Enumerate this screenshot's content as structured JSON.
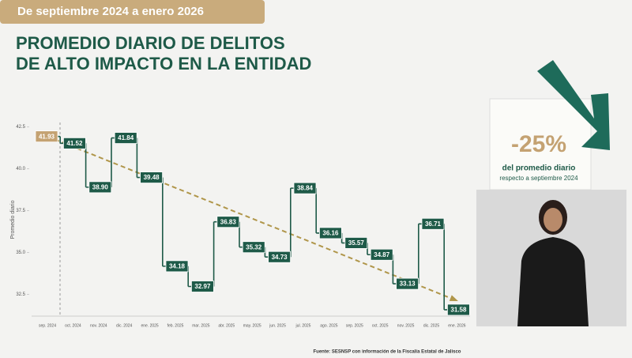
{
  "header": {
    "badge": "De septiembre 2024 a enero 2026",
    "title_lines": [
      "PROMEDIO DIARIO DE DELITOS",
      "DE ALTO IMPACTO EN LA ENTIDAD"
    ]
  },
  "chart_data": {
    "type": "step",
    "y_label": "Promedio diario",
    "categories": [
      "sep. 2024",
      "oct. 2024",
      "nov. 2024",
      "dic. 2024",
      "ene. 2025",
      "feb. 2025",
      "mar. 2025",
      "abr. 2025",
      "may. 2025",
      "jun. 2025",
      "jul. 2025",
      "ago. 2025",
      "sep. 2025",
      "oct. 2025",
      "nov. 2025",
      "dic. 2025",
      "ene. 2026"
    ],
    "values": [
      41.93,
      41.52,
      38.9,
      41.84,
      39.48,
      34.18,
      32.97,
      36.83,
      35.32,
      34.73,
      38.84,
      36.16,
      35.57,
      34.87,
      33.13,
      36.71,
      31.58
    ],
    "value_labels": [
      "41.93",
      "41.52",
      "38.90",
      "41.84",
      "39.48",
      "34.18",
      "32.97",
      "36.83",
      "35.32",
      "34.73",
      "38.84",
      "36.16",
      "35.57",
      "34.87",
      "33.13",
      "36.71",
      "31.58"
    ],
    "color": "#1e5a48",
    "first_color": "#c4a272",
    "trend_color": "#b0964a",
    "trend": [
      41.93,
      32.2
    ],
    "ylim": [
      31.2,
      43.0
    ],
    "yticks": [
      42.5,
      {
        "value": 40.0,
        "label": "40.0"
      },
      37.5,
      {
        "value": 35.0,
        "label": "35.0"
      },
      32.5
    ],
    "source": "Fuente: SESNSP con información de la Fiscalía Estatal de Jalisco"
  },
  "callout": {
    "value": "-25%",
    "line1": "del promedio diario",
    "line2": "respecto a septiembre 2024"
  }
}
